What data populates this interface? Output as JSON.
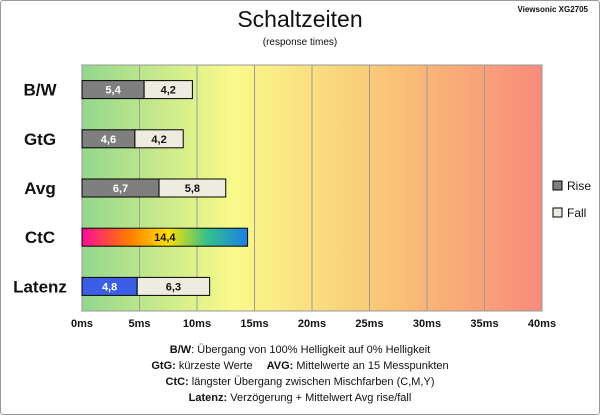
{
  "chart_data": {
    "type": "bar",
    "orientation": "horizontal",
    "stacked": true,
    "title": "Schaltzeiten",
    "subtitle": "(response times)",
    "model": "Viewsonic XG2705",
    "categories": [
      "B/W",
      "GtG",
      "Avg",
      "CtC",
      "Latenz"
    ],
    "series": [
      {
        "name": "Rise",
        "values": [
          5.4,
          4.6,
          6.7,
          null,
          4.8
        ],
        "labels": [
          "5,4",
          "4,6",
          "6,7",
          null,
          "4,8"
        ]
      },
      {
        "name": "Fall",
        "values": [
          4.2,
          4.2,
          5.8,
          null,
          6.3
        ],
        "labels": [
          "4,2",
          "4,2",
          "5,8",
          null,
          "6,3"
        ]
      }
    ],
    "single": {
      "category": "CtC",
      "value": 14.4,
      "label": "14,4"
    },
    "xlim": [
      0,
      40
    ],
    "x_ticks": [
      "0ms",
      "5ms",
      "10ms",
      "15ms",
      "20ms",
      "25ms",
      "30ms",
      "35ms",
      "40ms"
    ],
    "grid": true,
    "legend_position": "right",
    "colors": {
      "rise": "#7f7f7f",
      "fall": "#eeece1",
      "bg_gradient": [
        "#92d88c",
        "#fafa8a",
        "#f9c576",
        "#f98a7a"
      ],
      "latenz_rise": "#3b5ee8",
      "ctc_gradient": [
        "#ff0a9a",
        "#ff7a00",
        "#ffe000",
        "#31c08c",
        "#1b7fe8"
      ]
    }
  },
  "footnotes": {
    "line1": {
      "key": "B/W",
      "text": ":  Übergang von 100% Helligkeit auf 0% Helligkeit"
    },
    "line2a": {
      "key": "GtG:",
      "text": " kürzeste  Werte"
    },
    "line2b": {
      "key": "AVG:",
      "text": "  Mittelwerte  an 15 Messpunkten"
    },
    "line3": {
      "key": "CtC:",
      "text": " längster Übergang  zwischen Mischfarben  (C,M,Y)"
    },
    "line4": {
      "key": "Latenz:",
      "text": " Verzögerung  + Mittelwert Avg rise/fall"
    }
  }
}
